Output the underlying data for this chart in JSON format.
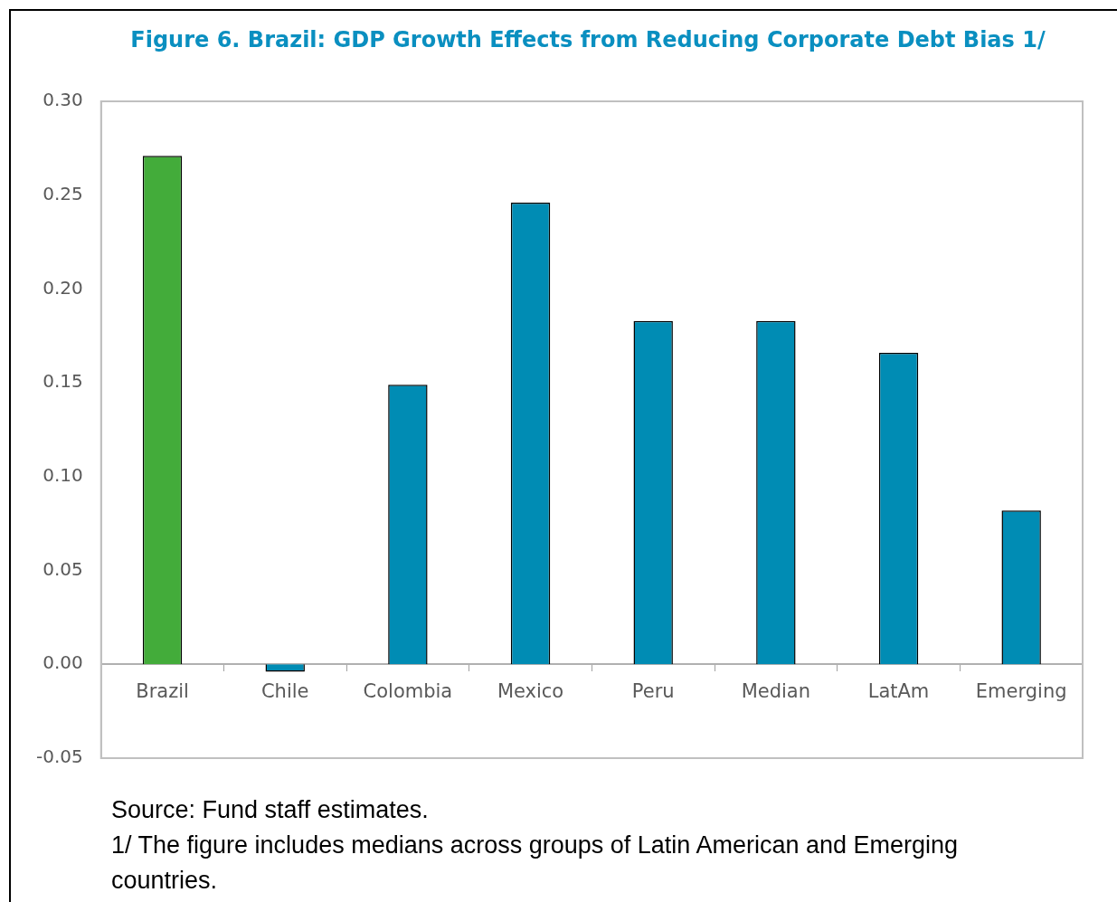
{
  "chart_data": {
    "type": "bar",
    "title": "Figure 6. Brazil: GDP Growth Effects from Reducing Corporate Debt Bias 1/",
    "categories": [
      "Brazil",
      "Chile",
      "Colombia",
      "Mexico",
      "Peru",
      "Median",
      "LatAm",
      "Emerging"
    ],
    "values": [
      0.271,
      -0.004,
      0.149,
      0.246,
      0.183,
      0.183,
      0.166,
      0.082
    ],
    "colors": [
      "#43ac3a",
      "#008cb4",
      "#008cb4",
      "#008cb4",
      "#008cb4",
      "#008cb4",
      "#008cb4",
      "#008cb4"
    ],
    "ylim": [
      -0.05,
      0.3
    ],
    "yticks": [
      {
        "value": -0.05,
        "label": "-0.05"
      },
      {
        "value": 0,
        "label": "0.00"
      },
      {
        "value": 0.05,
        "label": "0.05"
      },
      {
        "value": 0.1,
        "label": "0.10"
      },
      {
        "value": 0.15,
        "label": "0.15"
      },
      {
        "value": 0.2,
        "label": "0.20"
      },
      {
        "value": 0.25,
        "label": "0.25"
      },
      {
        "value": 0.3,
        "label": "0.30"
      }
    ],
    "grid": false,
    "legend": false,
    "annotations": [
      "Source: Fund  staff estimates.",
      "1/ The figure includes medians across groups of Latin American and Emerging countries."
    ]
  }
}
